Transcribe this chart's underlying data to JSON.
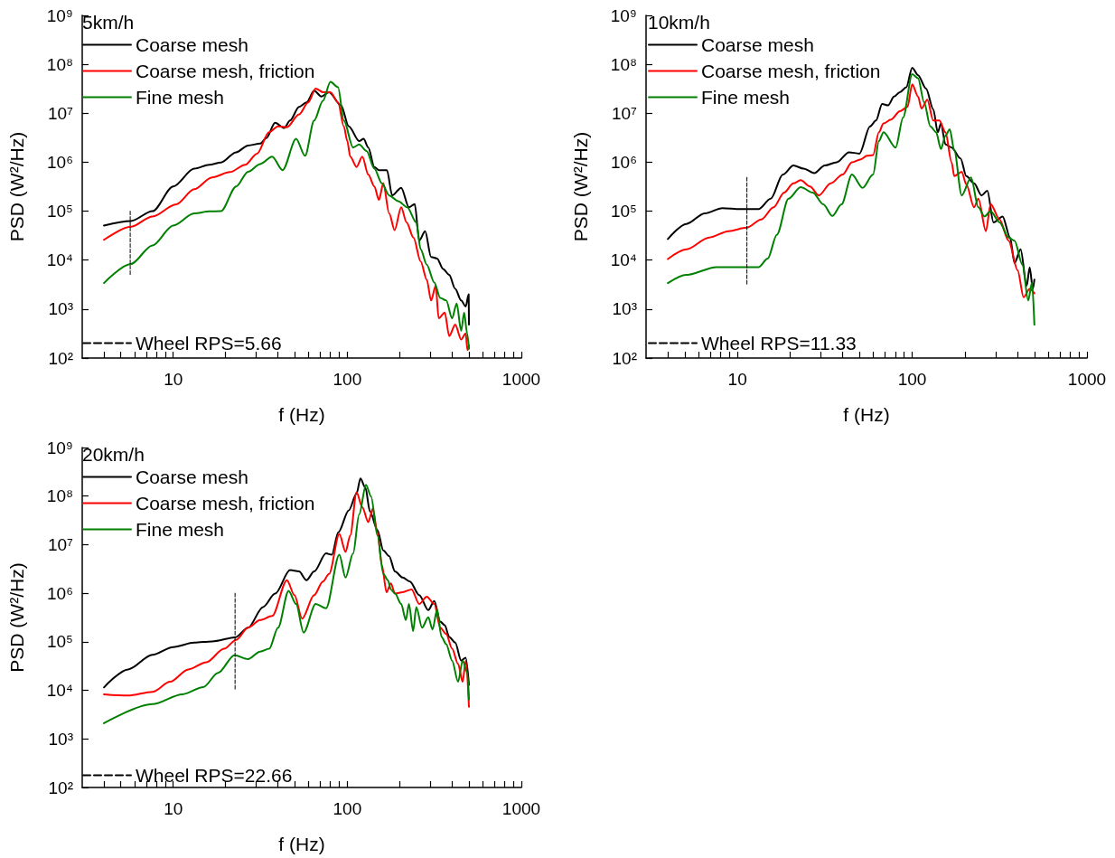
{
  "chart_data": [
    {
      "type": "line",
      "legend_title": "5km/h",
      "xlabel": "f (Hz)",
      "ylabel": "PSD (W²/Hz)",
      "log": "xy",
      "legend": "left",
      "xlim": [
        3,
        1000
      ],
      "ylim": [
        100,
        1000000000
      ],
      "xticks": [
        {
          "value": 4,
          "label": null
        },
        {
          "value": 5,
          "label": null
        },
        {
          "value": 6,
          "label": null
        },
        {
          "value": 7,
          "label": null
        },
        {
          "value": 8,
          "label": null
        },
        {
          "value": 9,
          "label": null
        },
        10,
        {
          "value": 20,
          "label": null
        },
        {
          "value": 30,
          "label": null
        },
        {
          "value": 40,
          "label": null
        },
        {
          "value": 50,
          "label": null
        },
        {
          "value": 60,
          "label": null
        },
        {
          "value": 70,
          "label": null
        },
        {
          "value": 80,
          "label": null
        },
        {
          "value": 90,
          "label": null
        },
        100,
        {
          "value": 200,
          "label": null
        },
        {
          "value": 300,
          "label": null
        },
        {
          "value": 400,
          "label": null
        },
        {
          "value": 500,
          "label": null
        },
        {
          "value": 600,
          "label": null
        },
        {
          "value": 700,
          "label": null
        },
        {
          "value": 800,
          "label": null
        },
        {
          "value": 900,
          "label": null
        },
        1000
      ],
      "yticks": [
        {
          "value": 100,
          "label": "10²"
        },
        {
          "value": 1000,
          "label": "10³"
        },
        {
          "value": 10000,
          "label": "10⁴"
        },
        {
          "value": 100000,
          "label": "10⁵"
        },
        {
          "value": 1000000,
          "label": "10⁶"
        },
        {
          "value": 10000000,
          "label": "10⁷"
        },
        {
          "value": 100000000,
          "label": "10⁸"
        },
        {
          "value": 1000000000,
          "label": "10⁹"
        }
      ],
      "series": [
        {
          "name": "Coarse mesh",
          "color": "#000000",
          "x": [
            4,
            5.7,
            7.6,
            10,
            13.2,
            16.1,
            18.8,
            23,
            26.9,
            31.6,
            34.2,
            38.5,
            43.4,
            46.9,
            52.8,
            58.3,
            64.5,
            71,
            78.6,
            92,
            102,
            117,
            124,
            132,
            143,
            152,
            169,
            181,
            204,
            226,
            244,
            259,
            280,
            303,
            328,
            355,
            385,
            417,
            451,
            479,
            498,
            500
          ],
          "values": [
            51000.0,
            63000.0,
            100000.0,
            320000.0,
            740000.0,
            890000.0,
            990000.0,
            1600000.0,
            2200000.0,
            2400000.0,
            3100000.0,
            6400000.0,
            5000000.0,
            7100000.0,
            13500000.0,
            16600000.0,
            29000000.0,
            22000000.0,
            27000000.0,
            14500000.0,
            5400000.0,
            2700000.0,
            3000000.0,
            2000000.0,
            800000.0,
            690000.0,
            690000.0,
            210000.0,
            300000.0,
            120000.0,
            140000.0,
            25000.0,
            39000.0,
            11600.0,
            10800.0,
            6600.0,
            5000.0,
            2600.0,
            1500.0,
            1130.0,
            2000.0,
            480.0
          ]
        },
        {
          "name": "Coarse mesh, friction",
          "color": "#ff0000",
          "x": [
            4,
            5.7,
            7.6,
            10.4,
            13.2,
            16.7,
            21.2,
            25.9,
            30.3,
            35.5,
            40,
            45,
            52.8,
            59.6,
            65.8,
            72.4,
            80,
            88.5,
            95.5,
            100,
            104,
            113,
            122,
            132,
            143,
            152,
            161,
            174,
            187,
            204,
            219,
            240,
            264,
            286,
            303,
            322,
            335,
            363,
            385,
            417,
            451,
            479,
            490,
            500
          ],
          "values": [
            26000.0,
            48000.0,
            78000.0,
            138000.0,
            280000.0,
            490000.0,
            630000.0,
            890000.0,
            1500000.0,
            4100000.0,
            5400000.0,
            5200000.0,
            9500000.0,
            16600000.0,
            32000000.0,
            27000000.0,
            27000000.0,
            16600000.0,
            5400000.0,
            2700000.0,
            1300000.0,
            800000.0,
            1300000.0,
            560000.0,
            320000.0,
            170000.0,
            370000.0,
            90000.0,
            41000.0,
            120000.0,
            59000.0,
            29000.0,
            9400.0,
            4000.0,
            1500.0,
            3000.0,
            650.0,
            850.0,
            280.0,
            480.0,
            240.0,
            320.0,
            145.0,
            180.0
          ]
        },
        {
          "name": "Fine mesh",
          "color": "#008000",
          "x": [
            4,
            5.7,
            7.6,
            10,
            13.2,
            16.1,
            18.8,
            23,
            26.9,
            31.6,
            37,
            42.5,
            50.8,
            57.2,
            64.5,
            72.4,
            80,
            88.5,
            95.5,
            108,
            117,
            129,
            143,
            158,
            174,
            196,
            221,
            249,
            264,
            286,
            316,
            342,
            370,
            400,
            425,
            451,
            469,
            488,
            500
          ],
          "values": [
            3400.0,
            8300.0,
            20000.0,
            51000.0,
            90000.0,
            99000.0,
            100000.0,
            320000.0,
            640000.0,
            920000.0,
            1300000.0,
            690000.0,
            3000000.0,
            1350000.0,
            7100000.0,
            18000000.0,
            44000000.0,
            34000000.0,
            7100000.0,
            2000000.0,
            2300000.0,
            1700000.0,
            740000.0,
            370000.0,
            210000.0,
            160000.0,
            120000.0,
            59000.0,
            16600.0,
            8100.0,
            3500.0,
            1700.0,
            1500.0,
            650.0,
            1300.0,
            360.0,
            850.0,
            320.0,
            155.0
          ]
        },
        {
          "name": "Wheel RPS=5.66",
          "color": "#000000",
          "line_style": "dashed",
          "x": [
            5.66,
            5.66
          ],
          "values": [
            100000.0,
            5000.0
          ]
        }
      ]
    },
    {
      "type": "line",
      "legend_title": "10km/h",
      "xlabel": "f (Hz)",
      "ylabel": "PSD (W²/Hz)",
      "log": "xy",
      "legend": "left",
      "xlim": [
        3,
        1000
      ],
      "ylim": [
        100,
        1000000000
      ],
      "xticks": [
        {
          "value": 4,
          "label": null
        },
        {
          "value": 5,
          "label": null
        },
        {
          "value": 6,
          "label": null
        },
        {
          "value": 7,
          "label": null
        },
        {
          "value": 8,
          "label": null
        },
        {
          "value": 9,
          "label": null
        },
        10,
        {
          "value": 20,
          "label": null
        },
        {
          "value": 30,
          "label": null
        },
        {
          "value": 40,
          "label": null
        },
        {
          "value": 50,
          "label": null
        },
        {
          "value": 60,
          "label": null
        },
        {
          "value": 70,
          "label": null
        },
        {
          "value": 80,
          "label": null
        },
        {
          "value": 90,
          "label": null
        },
        100,
        {
          "value": 200,
          "label": null
        },
        {
          "value": 300,
          "label": null
        },
        {
          "value": 400,
          "label": null
        },
        {
          "value": 500,
          "label": null
        },
        {
          "value": 600,
          "label": null
        },
        {
          "value": 700,
          "label": null
        },
        {
          "value": 800,
          "label": null
        },
        {
          "value": 900,
          "label": null
        },
        1000
      ],
      "yticks": [
        {
          "value": 100,
          "label": "10²"
        },
        {
          "value": 1000,
          "label": "10³"
        },
        {
          "value": 10000,
          "label": "10⁴"
        },
        {
          "value": 100000,
          "label": "10⁵"
        },
        {
          "value": 1000000,
          "label": "10⁶"
        },
        {
          "value": 10000000,
          "label": "10⁷"
        },
        {
          "value": 100000000,
          "label": "10⁸"
        },
        {
          "value": 1000000000,
          "label": "10⁹"
        }
      ],
      "series": [
        {
          "name": "Coarse mesh",
          "color": "#000000",
          "x": [
            4,
            5.1,
            6.5,
            8.2,
            10.4,
            13.2,
            15.5,
            18.2,
            20.9,
            23.9,
            27.5,
            31.6,
            37,
            43.5,
            49.9,
            57.4,
            62,
            67.3,
            72.8,
            78.8,
            85,
            92.5,
            100,
            108,
            120,
            132,
            140,
            146,
            155,
            168,
            189,
            204,
            226,
            249,
            269,
            292,
            329,
            363,
            385,
            417,
            452,
            470,
            490,
            500
          ],
          "values": [
            27000.0,
            55000.0,
            90000.0,
            115000.0,
            110000.0,
            110000.0,
            180000.0,
            560000.0,
            860000.0,
            740000.0,
            600000.0,
            860000.0,
            1000000.0,
            1600000.0,
            1500000.0,
            5400000.0,
            7100000.0,
            15500000.0,
            14500000.0,
            22000000.0,
            27000000.0,
            34000000.0,
            85000000.0,
            60000000.0,
            32000000.0,
            12000000.0,
            4100000.0,
            6200000.0,
            2300000.0,
            2000000.0,
            1200000.0,
            520000.0,
            370000.0,
            210000.0,
            260000.0,
            59000.0,
            78000.0,
            29000.0,
            8700.0,
            16600.0,
            3000.0,
            7100.0,
            2600.0,
            4000.0
          ]
        },
        {
          "name": "Coarse mesh, friction",
          "color": "#ff0000",
          "x": [
            4,
            5.1,
            6.9,
            8.9,
            11.3,
            13.7,
            16.1,
            18.5,
            20.9,
            23,
            26,
            29.2,
            34.2,
            40,
            45.2,
            50.9,
            55,
            59.7,
            64.5,
            68.5,
            75.6,
            85,
            94,
            100,
            108,
            113,
            122,
            132,
            143,
            155,
            168,
            174,
            192,
            204,
            226,
            239,
            264,
            281,
            316,
            356,
            401,
            434,
            470,
            500
          ],
          "values": [
            10500.0,
            16600.0,
            29000.0,
            39000.0,
            46000.0,
            68000.0,
            120000.0,
            240000.0,
            370000.0,
            430000.0,
            320000.0,
            210000.0,
            370000.0,
            560000.0,
            1000000.0,
            1150000.0,
            1350000.0,
            1400000.0,
            4100000.0,
            6200000.0,
            7400000.0,
            11000000.0,
            13500000.0,
            39000000.0,
            22000000.0,
            12500000.0,
            19000000.0,
            7100000.0,
            7100000.0,
            4100000.0,
            1000000.0,
            520000.0,
            640000.0,
            350000.0,
            120000.0,
            180000.0,
            39000.0,
            140000.0,
            68000.0,
            25000.0,
            6200.0,
            1740.0,
            2600.0,
            2100.0
          ]
        },
        {
          "name": "Fine mesh",
          "color": "#008000",
          "x": [
            4,
            5.1,
            7.6,
            10.4,
            13.2,
            14.9,
            16.8,
            19.6,
            23,
            27,
            31,
            34.9,
            39.4,
            45.2,
            52,
            59.7,
            64.5,
            68.5,
            80.4,
            88.7,
            100,
            108,
            117,
            127,
            137,
            146,
            155,
            164,
            174,
            192,
            217,
            239,
            259,
            281,
            316,
            356,
            385,
            427,
            461,
            485,
            500
          ],
          "values": [
            3400.0,
            5000.0,
            7200.0,
            7200.0,
            7200.0,
            10700.0,
            33000.0,
            180000.0,
            310000.0,
            240000.0,
            138000.0,
            80000.0,
            138000.0,
            560000.0,
            300000.0,
            560000.0,
            2700000.0,
            4100000.0,
            2000000.0,
            8200000.0,
            63000000.0,
            52000000.0,
            16600000.0,
            5400000.0,
            4100000.0,
            1860000.0,
            3500000.0,
            4700000.0,
            1740000.0,
            210000.0,
            490000.0,
            120000.0,
            78000.0,
            100000.0,
            59000.0,
            29000.0,
            25000.0,
            8100.0,
            1500.0,
            3500.0,
            480.0
          ]
        },
        {
          "name": "Wheel RPS=11.33",
          "color": "#000000",
          "line_style": "dashed",
          "x": [
            11.33,
            11.33
          ],
          "values": [
            490000.0,
            3000.0
          ]
        }
      ]
    },
    {
      "type": "line",
      "legend_title": "20km/h",
      "xlabel": "f (Hz)",
      "ylabel": "PSD (W²/Hz)",
      "log": "xy",
      "legend": "left",
      "xlim": [
        3,
        1000
      ],
      "ylim": [
        100,
        1000000000
      ],
      "xticks": [
        {
          "value": 4,
          "label": null
        },
        {
          "value": 5,
          "label": null
        },
        {
          "value": 6,
          "label": null
        },
        {
          "value": 7,
          "label": null
        },
        {
          "value": 8,
          "label": null
        },
        {
          "value": 9,
          "label": null
        },
        10,
        {
          "value": 20,
          "label": null
        },
        {
          "value": 30,
          "label": null
        },
        {
          "value": 40,
          "label": null
        },
        {
          "value": 50,
          "label": null
        },
        {
          "value": 60,
          "label": null
        },
        {
          "value": 70,
          "label": null
        },
        {
          "value": 80,
          "label": null
        },
        {
          "value": 90,
          "label": null
        },
        100,
        {
          "value": 200,
          "label": null
        },
        {
          "value": 300,
          "label": null
        },
        {
          "value": 400,
          "label": null
        },
        {
          "value": 500,
          "label": null
        },
        {
          "value": 600,
          "label": null
        },
        {
          "value": 700,
          "label": null
        },
        {
          "value": 800,
          "label": null
        },
        {
          "value": 900,
          "label": null
        },
        1000
      ],
      "yticks": [
        {
          "value": 100,
          "label": "10²"
        },
        {
          "value": 1000,
          "label": "10³"
        },
        {
          "value": 10000,
          "label": "10⁴"
        },
        {
          "value": 100000,
          "label": "10⁵"
        },
        {
          "value": 1000000,
          "label": "10⁶"
        },
        {
          "value": 10000000,
          "label": "10⁷"
        },
        {
          "value": 100000000,
          "label": "10⁸"
        },
        {
          "value": 1000000000,
          "label": "10⁹"
        }
      ],
      "series": [
        {
          "name": "Coarse mesh",
          "color": "#000000",
          "x": [
            4,
            5.5,
            7.6,
            10,
            13.2,
            16.7,
            22.7,
            26.9,
            32.8,
            38.5,
            46.9,
            52.8,
            58.3,
            64.5,
            75.5,
            81.5,
            88.8,
            102,
            113,
            119,
            127,
            135,
            149,
            161,
            174,
            188,
            208,
            229,
            259,
            292,
            316,
            342,
            363,
            385,
            417,
            451,
            479,
            500
          ],
          "values": [
            11500.0,
            27000.0,
            54000.0,
            78000.0,
            96000.0,
            102000.0,
            123000.0,
            195000.0,
            520000.0,
            980000.0,
            3000000.0,
            2800000.0,
            1860000.0,
            2800000.0,
            6600000.0,
            6200000.0,
            18000000.0,
            51000000.0,
            112000000.0,
            230000000.0,
            150000000.0,
            48000000.0,
            20000000.0,
            7600000.0,
            5800000.0,
            2800000.0,
            2100000.0,
            1740000.0,
            910000.0,
            450000.0,
            690000.0,
            260000.0,
            220000.0,
            126000.0,
            96000.0,
            41000.0,
            47000.0,
            13000.0
          ]
        },
        {
          "name": "Coarse mesh, friction",
          "color": "#ff0000",
          "x": [
            4,
            5.5,
            7.6,
            9.6,
            12.2,
            15.5,
            19.6,
            23,
            26.9,
            31.6,
            37,
            45,
            49.7,
            55,
            64.5,
            72.4,
            78.6,
            90,
            97.7,
            104,
            113,
            122,
            132,
            140,
            149,
            158,
            168,
            178,
            188,
            208,
            234,
            259,
            286,
            316,
            342,
            370,
            400,
            433,
            460,
            479,
            500
          ],
          "values": [
            8300.0,
            7800.0,
            9300.0,
            15000.0,
            27000.0,
            38000.0,
            72000.0,
            110000.0,
            195000.0,
            280000.0,
            340000.0,
            1860000.0,
            910000.0,
            300000.0,
            910000.0,
            1740000.0,
            2500000.0,
            16600000.0,
            7100000.0,
            15500000.0,
            120000000.0,
            59000000.0,
            29000000.0,
            55000000.0,
            18000000.0,
            3800000.0,
            1050000.0,
            1600000.0,
            980000.0,
            1050000.0,
            1200000.0,
            600000.0,
            850000.0,
            600000.0,
            195000.0,
            145000.0,
            72000.0,
            35000.0,
            15000.0,
            41000.0,
            4600.0
          ]
        },
        {
          "name": "Fine mesh",
          "color": "#008000",
          "x": [
            4,
            7.6,
            11.3,
            14.9,
            18.1,
            22.5,
            26.9,
            31.6,
            35.6,
            40,
            46,
            50.8,
            56.1,
            65.8,
            75.5,
            90,
            97.7,
            108,
            117,
            128,
            137,
            149,
            161,
            171,
            178,
            188,
            204,
            217,
            226,
            239,
            249,
            269,
            292,
            309,
            328,
            348,
            370,
            400,
            433,
            460,
            490,
            500
          ],
          "values": [
            2100.0,
            5200.0,
            8300.0,
            11700.0,
            23000.0,
            53000.0,
            44000.0,
            63000.0,
            72000.0,
            195000.0,
            1120000.0,
            600000.0,
            155000.0,
            600000.0,
            490000.0,
            6200000.0,
            2100000.0,
            6600000.0,
            42000000.0,
            170000000.0,
            98000000.0,
            15500000.0,
            2500000.0,
            1860000.0,
            1200000.0,
            980000.0,
            600000.0,
            280000.0,
            600000.0,
            166000.0,
            520000.0,
            195000.0,
            320000.0,
            180000.0,
            460000.0,
            126000.0,
            89000.0,
            41000.0,
            15000.0,
            41000.0,
            23000.0,
            6500.0
          ]
        },
        {
          "name": "Wheel RPS=22.66",
          "color": "#000000",
          "line_style": "dashed",
          "x": [
            22.66,
            22.66
          ],
          "values": [
            1000000.0,
            10000.0
          ]
        }
      ]
    }
  ]
}
